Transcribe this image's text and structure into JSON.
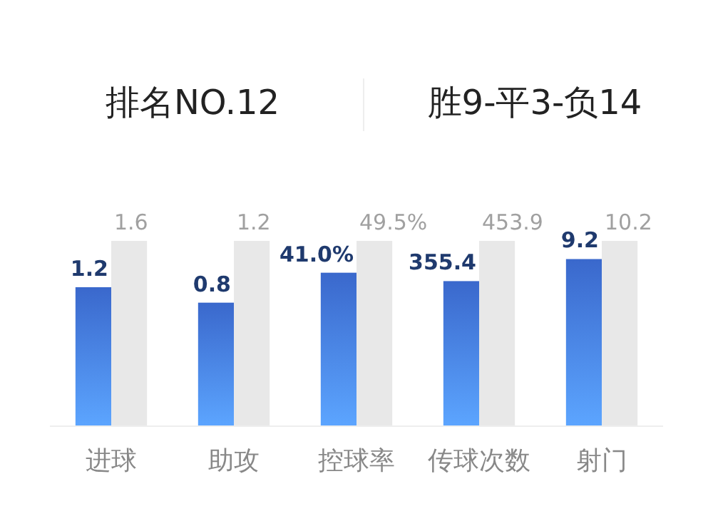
{
  "chart_data": [
    {
      "type": "other",
      "title": "排名NO.12",
      "subtitle": "胜9-平3-负14"
    },
    {
      "type": "bar",
      "categories": [
        "进球"
      ],
      "series": [
        {
          "color": "#3a68cc",
          "values": [
            1.2
          ],
          "value_labels": [
            "1.2"
          ]
        },
        {
          "color": "#e8e8e8",
          "values": [
            1.6
          ],
          "value_labels": [
            "1.6"
          ]
        }
      ]
    },
    {
      "type": "bar",
      "categories": [
        "助攻"
      ],
      "series": [
        {
          "color": "#3a68cc",
          "values": [
            0.8
          ],
          "value_labels": [
            "0.8"
          ]
        },
        {
          "color": "#e8e8e8",
          "values": [
            1.2
          ],
          "value_labels": [
            "1.2"
          ]
        }
      ]
    },
    {
      "type": "bar",
      "categories": [
        "控球率"
      ],
      "series": [
        {
          "color": "#3a68cc",
          "values": [
            41.0
          ],
          "value_labels": [
            "41.0%"
          ]
        },
        {
          "color": "#e8e8e8",
          "values": [
            49.5
          ],
          "value_labels": [
            "49.5%"
          ]
        }
      ]
    },
    {
      "type": "bar",
      "categories": [
        "传球次数"
      ],
      "series": [
        {
          "color": "#3a68cc",
          "values": [
            355.4
          ],
          "value_labels": [
            "355.4"
          ]
        },
        {
          "color": "#e8e8e8",
          "values": [
            453.9
          ],
          "value_labels": [
            "453.9"
          ]
        }
      ]
    },
    {
      "type": "bar",
      "categories": [
        "射门"
      ],
      "series": [
        {
          "color": "#3a68cc",
          "values": [
            9.2
          ],
          "value_labels": [
            "9.2"
          ]
        },
        {
          "color": "#e8e8e8",
          "values": [
            10.2
          ],
          "value_labels": [
            "10.2"
          ]
        }
      ]
    }
  ]
}
